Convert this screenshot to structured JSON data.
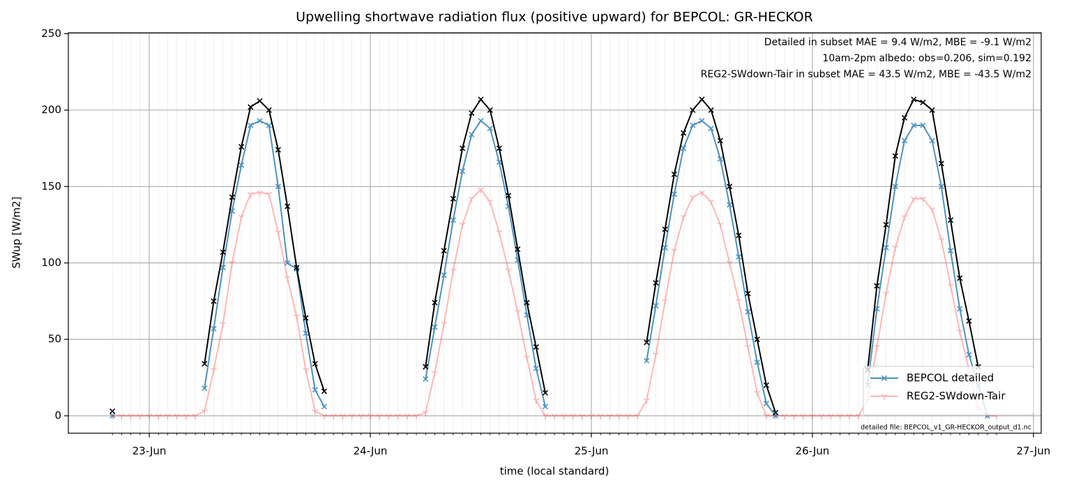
{
  "chart_data": {
    "type": "line",
    "title": "Upwelling shortwave radiation flux (positive upward) for BEPCOL: GR-HECKOR",
    "x_label": "time (local standard)",
    "y_label": "SWup [W/m2]",
    "xlim": [
      22.634,
      27.035
    ],
    "xticks": [
      {
        "value": 23,
        "label": "23-Jun"
      },
      {
        "value": 24,
        "label": "24-Jun"
      },
      {
        "value": 25,
        "label": "25-Jun"
      },
      {
        "value": 26,
        "label": "26-Jun"
      },
      {
        "value": 27,
        "label": "27-Jun"
      }
    ],
    "ylim": [
      -11.4,
      250.6
    ],
    "yticks": [
      0,
      50,
      100,
      150,
      200,
      250
    ],
    "grid": true,
    "legend": "lower right",
    "annotations": [
      {
        "text": "Detailed in subset MAE = 9.4 W/m2, MBE = -9.1 W/m2",
        "color": "#1f77b4"
      },
      {
        "text": "10am-2pm albedo: obs=0.206, sim=0.192",
        "color": "#000000"
      },
      {
        "text": "REG2-SWdown-Tair in subset MAE = 43.5 W/m2, MBE = -43.5 W/m2",
        "color": "#ff0000"
      }
    ],
    "footnote": "detailed file: BEPCOL_v1_GR-HECKOR_output_d1.nc",
    "x": [
      22.8333,
      22.875,
      22.9167,
      22.9583,
      23.0,
      23.0417,
      23.0833,
      23.125,
      23.1667,
      23.2083,
      23.25,
      23.2917,
      23.3333,
      23.375,
      23.4167,
      23.4583,
      23.5,
      23.5417,
      23.5833,
      23.625,
      23.6667,
      23.7083,
      23.75,
      23.7917,
      23.8333,
      23.875,
      23.9167,
      23.9583,
      24.0,
      24.0417,
      24.0833,
      24.125,
      24.1667,
      24.2083,
      24.25,
      24.2917,
      24.3333,
      24.375,
      24.4167,
      24.4583,
      24.5,
      24.5417,
      24.5833,
      24.625,
      24.6667,
      24.7083,
      24.75,
      24.7917,
      24.8333,
      24.875,
      24.9167,
      24.9583,
      25.0,
      25.0417,
      25.0833,
      25.125,
      25.1667,
      25.2083,
      25.25,
      25.2917,
      25.3333,
      25.375,
      25.4167,
      25.4583,
      25.5,
      25.5417,
      25.5833,
      25.625,
      25.6667,
      25.7083,
      25.75,
      25.7917,
      25.8333,
      25.875,
      25.9167,
      25.9583,
      26.0,
      26.0417,
      26.0833,
      26.125,
      26.1667,
      26.2083,
      26.25,
      26.2917,
      26.3333,
      26.375,
      26.4167,
      26.4583,
      26.5,
      26.5417,
      26.5833,
      26.625,
      26.6667,
      26.7083,
      26.75,
      26.7917,
      26.8333
    ],
    "series": [
      {
        "name": "REG2-SWdown-Tair",
        "color": "#ff0000",
        "values": [
          0,
          0,
          0,
          0,
          0,
          0,
          0,
          0,
          0,
          0,
          3,
          30,
          60,
          100,
          130,
          145,
          146,
          145,
          120,
          90,
          65,
          30,
          3,
          0,
          0,
          0,
          0,
          0,
          0,
          0,
          0,
          0,
          0,
          0,
          2,
          28,
          60,
          95,
          125,
          142,
          148,
          140,
          120,
          95,
          68,
          38,
          10,
          0,
          0,
          0,
          0,
          0,
          0,
          0,
          0,
          0,
          0,
          0,
          10,
          40,
          75,
          108,
          130,
          143,
          146,
          140,
          125,
          100,
          75,
          45,
          15,
          0,
          0,
          0,
          0,
          0,
          0,
          0,
          0,
          0,
          0,
          0,
          10,
          45,
          80,
          110,
          130,
          142,
          142,
          135,
          115,
          85,
          55,
          30,
          5,
          0,
          0
        ]
      },
      {
        "name": "BEPCOL detailed",
        "color": "#1f77b4",
        "values": [
          0,
          null,
          null,
          null,
          null,
          null,
          null,
          null,
          null,
          null,
          18,
          57,
          97,
          134,
          164,
          190,
          193,
          190,
          150,
          100,
          96,
          54,
          17,
          6,
          null,
          null,
          null,
          null,
          null,
          null,
          null,
          null,
          null,
          null,
          24,
          58,
          92,
          128,
          160,
          184,
          193,
          188,
          166,
          137,
          102,
          66,
          31,
          6,
          null,
          null,
          null,
          null,
          null,
          null,
          null,
          null,
          null,
          null,
          36,
          72,
          110,
          145,
          175,
          190,
          193,
          188,
          168,
          138,
          104,
          68,
          35,
          8,
          0,
          null,
          null,
          null,
          null,
          null,
          null,
          null,
          null,
          null,
          20,
          70,
          110,
          150,
          180,
          190,
          190,
          180,
          150,
          108,
          70,
          40,
          20,
          0,
          null
        ]
      },
      {
        "color": "#000000",
        "values": [
          3,
          null,
          null,
          null,
          null,
          null,
          null,
          null,
          null,
          null,
          34,
          75,
          107,
          143,
          176,
          202,
          206,
          200,
          174,
          137,
          97,
          64,
          34,
          16,
          null,
          null,
          null,
          null,
          null,
          null,
          null,
          null,
          null,
          null,
          32,
          74,
          108,
          142,
          175,
          198,
          207,
          200,
          175,
          144,
          109,
          74,
          45,
          15,
          null,
          null,
          null,
          null,
          null,
          null,
          null,
          null,
          null,
          null,
          48,
          87,
          122,
          158,
          185,
          200,
          207,
          200,
          180,
          150,
          118,
          80,
          50,
          20,
          2,
          null,
          null,
          null,
          null,
          null,
          null,
          null,
          null,
          null,
          30,
          85,
          125,
          170,
          195,
          207,
          205,
          200,
          165,
          128,
          90,
          62,
          32,
          null,
          null
        ]
      }
    ]
  }
}
